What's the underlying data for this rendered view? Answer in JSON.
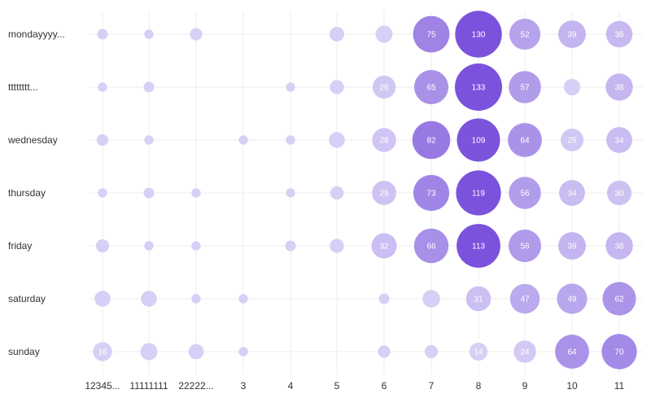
{
  "chart_data": {
    "type": "bubble",
    "title": "",
    "xlabel": "",
    "ylabel": "",
    "x_categories": [
      "12345...",
      "11111111",
      "22222...",
      "3",
      "4",
      "5",
      "6",
      "7",
      "8",
      "9",
      "10",
      "11"
    ],
    "y_categories": [
      "mondayyyy...",
      "tttttttt...",
      "wednesday",
      "thursday",
      "friday",
      "saturday",
      "sunday"
    ],
    "color_low": "#d7cff5",
    "color_high": "#7b52db",
    "size_max_value": 133,
    "grid": true,
    "legend": "none",
    "series": [
      {
        "y": "mondayyyy...",
        "values": [
          3,
          2,
          5,
          0,
          0,
          8,
          12,
          75,
          130,
          52,
          39,
          36
        ]
      },
      {
        "y": "tttttttt...",
        "values": [
          2,
          3,
          0,
          0,
          2,
          7,
          26,
          65,
          133,
          57,
          11,
          38
        ]
      },
      {
        "y": "wednesday",
        "values": [
          4,
          2,
          0,
          2,
          2,
          10,
          28,
          82,
          109,
          64,
          25,
          34
        ]
      },
      {
        "y": "thursday",
        "values": [
          2,
          3,
          2,
          0,
          2,
          6,
          29,
          73,
          119,
          56,
          34,
          30
        ]
      },
      {
        "y": "friday",
        "values": [
          6,
          2,
          2,
          0,
          3,
          7,
          32,
          66,
          113,
          58,
          39,
          38
        ]
      },
      {
        "y": "saturday",
        "values": [
          10,
          10,
          2,
          2,
          0,
          0,
          3,
          13,
          31,
          47,
          49,
          62
        ]
      },
      {
        "y": "sunday",
        "values": [
          16,
          12,
          9,
          2,
          0,
          0,
          5,
          6,
          14,
          24,
          64,
          70
        ]
      }
    ]
  }
}
